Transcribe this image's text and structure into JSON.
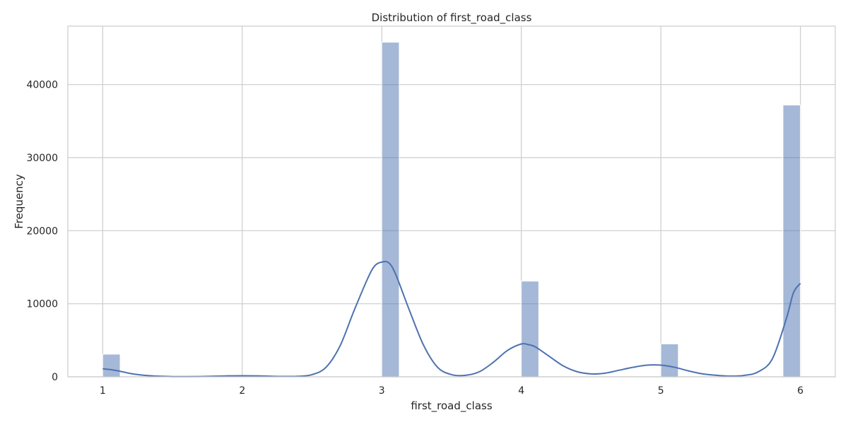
{
  "chart_data": {
    "type": "bar",
    "title": "Distribution of first_road_class",
    "xlabel": "first_road_class",
    "ylabel": "Frequency",
    "xlim": [
      0.75,
      6.25
    ],
    "ylim": [
      0,
      48000
    ],
    "xticks": [
      1,
      2,
      3,
      4,
      5,
      6
    ],
    "yticks": [
      0,
      10000,
      20000,
      30000,
      40000
    ],
    "grid": true,
    "bin_width": 0.125,
    "bins": [
      {
        "x": 1.0625,
        "value": 3100
      },
      {
        "x": 2.0625,
        "value": 150
      },
      {
        "x": 3.0625,
        "value": 45800
      },
      {
        "x": 4.0625,
        "value": 13100
      },
      {
        "x": 5.0625,
        "value": 4500
      },
      {
        "x": 5.9375,
        "value": 37200
      }
    ],
    "kde": {
      "x": [
        1.0,
        1.05,
        1.1,
        1.15,
        1.2,
        1.3,
        1.4,
        1.5,
        1.6,
        1.7,
        1.8,
        1.9,
        2.0,
        2.1,
        2.2,
        2.3,
        2.4,
        2.5,
        2.6,
        2.7,
        2.8,
        2.9,
        2.95,
        3.0,
        3.05,
        3.1,
        3.2,
        3.3,
        3.4,
        3.5,
        3.6,
        3.7,
        3.8,
        3.9,
        4.0,
        4.05,
        4.1,
        4.2,
        4.3,
        4.4,
        4.5,
        4.6,
        4.7,
        4.8,
        4.9,
        5.0,
        5.1,
        5.2,
        5.3,
        5.4,
        5.5,
        5.6,
        5.7,
        5.8,
        5.9,
        5.95,
        6.0
      ],
      "y": [
        1100,
        1000,
        850,
        650,
        450,
        200,
        80,
        30,
        20,
        40,
        80,
        130,
        150,
        130,
        80,
        50,
        70,
        300,
        1300,
        4200,
        9000,
        13500,
        15200,
        15700,
        15600,
        14000,
        9000,
        4300,
        1300,
        300,
        200,
        700,
        2000,
        3600,
        4500,
        4400,
        4100,
        2800,
        1500,
        700,
        400,
        500,
        900,
        1300,
        1600,
        1600,
        1300,
        800,
        400,
        200,
        100,
        200,
        700,
        2500,
        8000,
        11500,
        12800
      ],
      "color": "#4c72b0"
    },
    "bar_color": "#4c72b0",
    "bar_opacity": 0.5
  }
}
